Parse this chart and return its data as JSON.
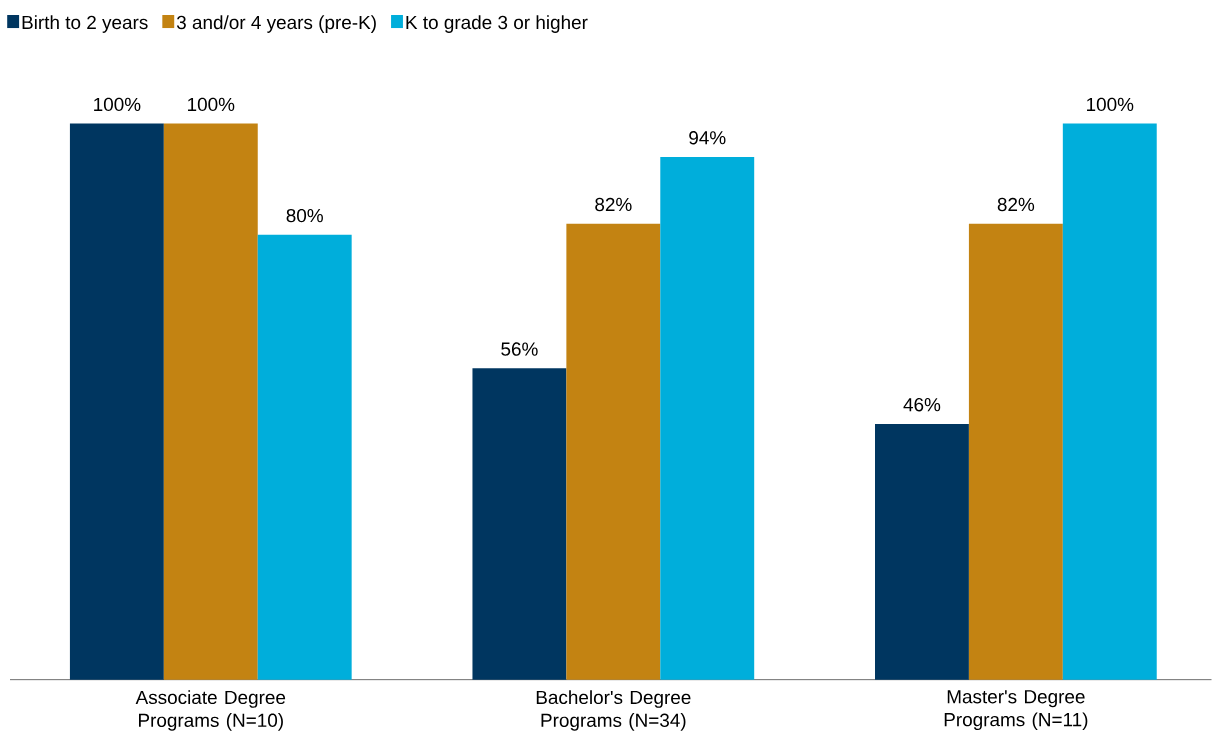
{
  "chart_data": {
    "type": "bar",
    "categories": [
      "Associate Degree Programs (N=10)",
      "Bachelor's Degree Programs (N=34)",
      "Master's Degree Programs (N=11)"
    ],
    "series": [
      {
        "name": "Birth to 2 years",
        "color": "#003660",
        "values": [
          100,
          56,
          46
        ],
        "value_labels": [
          "100%",
          "56%",
          "46%"
        ]
      },
      {
        "name": "3 and/or 4 years (pre-K)",
        "color": "#c38312",
        "values": [
          100,
          82,
          82
        ],
        "value_labels": [
          "100%",
          "82%",
          "82%"
        ]
      },
      {
        "name": "K to grade 3 or higher",
        "color": "#00aedb",
        "values": [
          80,
          94,
          100
        ],
        "value_labels": [
          "80%",
          "94%",
          "100%"
        ]
      }
    ],
    "legend": "top left"
  }
}
